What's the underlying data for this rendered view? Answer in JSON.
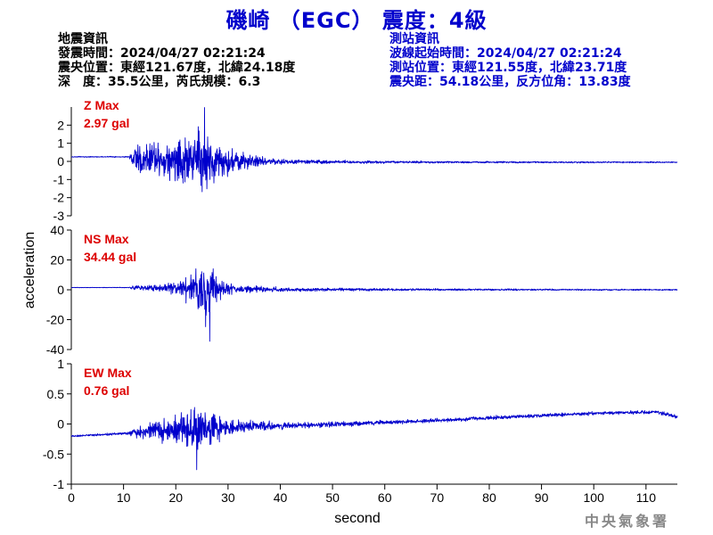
{
  "header": {
    "title": "磯崎 （EGC） 震度：4級",
    "title_color": "#0000cc"
  },
  "event_info": {
    "heading": "地震資訊",
    "origin_time": "發震時間：2024/04/27 02:21:24",
    "epicenter": "震央位置：東經121.67度，北緯24.18度",
    "depth_magnitude": "深　度：35.5公里，芮氏規模：6.3",
    "color": "#000000"
  },
  "station_info": {
    "heading": "測站資訊",
    "wave_start": "波線起始時間：2024/04/27 02:21:24",
    "location": "測站位置：東經121.55度，北緯23.71度",
    "distance": "震央距：54.18公里，反方位角：13.83度",
    "color": "#0000cc"
  },
  "credit": "中央氣象署",
  "chart_data": {
    "type": "line",
    "trace_color": "#0000cc",
    "label_color": "#dd0000",
    "xlabel": "second",
    "ylabel": "acceleration",
    "x_range": [
      0,
      116
    ],
    "x_ticks": [
      0,
      10,
      20,
      30,
      40,
      50,
      60,
      70,
      80,
      90,
      100,
      110
    ],
    "panels": [
      {
        "component": "Z",
        "max_label": "Z Max",
        "max_value": "2.97 gal",
        "ylim": [
          -3,
          3
        ],
        "y_ticks": [
          -3,
          -2,
          -1,
          0,
          1,
          2
        ],
        "baseline_pre": 0.25,
        "baseline_post": -0.05,
        "onset": 11.5,
        "peak_time": 25.5,
        "peak": 2.97,
        "envelope": [
          [
            0,
            0.03
          ],
          [
            11,
            0.04
          ],
          [
            12,
            0.9
          ],
          [
            14,
            1.2
          ],
          [
            18,
            1.5
          ],
          [
            22,
            2.0
          ],
          [
            25,
            2.6
          ],
          [
            28,
            1.4
          ],
          [
            30,
            1.0
          ],
          [
            35,
            0.45
          ],
          [
            40,
            0.2
          ],
          [
            50,
            0.12
          ],
          [
            70,
            0.08
          ],
          [
            90,
            0.06
          ],
          [
            116,
            0.05
          ]
        ],
        "drift": [
          [
            0,
            0.25
          ],
          [
            11,
            0.25
          ],
          [
            12,
            0.1
          ],
          [
            30,
            0.0
          ],
          [
            60,
            -0.04
          ],
          [
            116,
            -0.05
          ]
        ]
      },
      {
        "component": "NS",
        "max_label": "NS Max",
        "max_value": "34.44 gal",
        "ylim": [
          -40,
          40
        ],
        "y_ticks": [
          -40,
          -20,
          0,
          20,
          40
        ],
        "baseline_pre": 1.5,
        "baseline_post": 0,
        "onset": 11.5,
        "peak_time": 26.5,
        "peak": -34.44,
        "envelope": [
          [
            0,
            0.2
          ],
          [
            11,
            0.3
          ],
          [
            12,
            2.0
          ],
          [
            18,
            3.5
          ],
          [
            21,
            8.0
          ],
          [
            24,
            22.0
          ],
          [
            26,
            28.0
          ],
          [
            28,
            10.0
          ],
          [
            32,
            4.0
          ],
          [
            40,
            2.0
          ],
          [
            55,
            1.2
          ],
          [
            80,
            0.8
          ],
          [
            116,
            0.6
          ]
        ],
        "drift": [
          [
            0,
            1.5
          ],
          [
            12,
            1.5
          ],
          [
            20,
            1.0
          ],
          [
            40,
            0.2
          ],
          [
            116,
            0.0
          ]
        ]
      },
      {
        "component": "EW",
        "max_label": "EW Max",
        "max_value": "0.76 gal",
        "ylim": [
          -1,
          1
        ],
        "y_ticks": [
          -1,
          -0.5,
          0,
          0.5,
          1
        ],
        "baseline_pre": -0.2,
        "baseline_post": 0.15,
        "onset": 11.5,
        "peak_time": 24,
        "peak": -0.76,
        "envelope": [
          [
            0,
            0.02
          ],
          [
            11,
            0.03
          ],
          [
            12,
            0.12
          ],
          [
            16,
            0.2
          ],
          [
            20,
            0.35
          ],
          [
            24,
            0.55
          ],
          [
            27,
            0.35
          ],
          [
            30,
            0.18
          ],
          [
            40,
            0.08
          ],
          [
            60,
            0.05
          ],
          [
            90,
            0.04
          ],
          [
            116,
            0.04
          ]
        ],
        "drift": [
          [
            0,
            -0.2
          ],
          [
            10,
            -0.16
          ],
          [
            20,
            -0.08
          ],
          [
            30,
            -0.05
          ],
          [
            40,
            -0.03
          ],
          [
            60,
            0.02
          ],
          [
            80,
            0.1
          ],
          [
            100,
            0.18
          ],
          [
            112,
            0.2
          ],
          [
            116,
            0.12
          ]
        ]
      }
    ]
  }
}
